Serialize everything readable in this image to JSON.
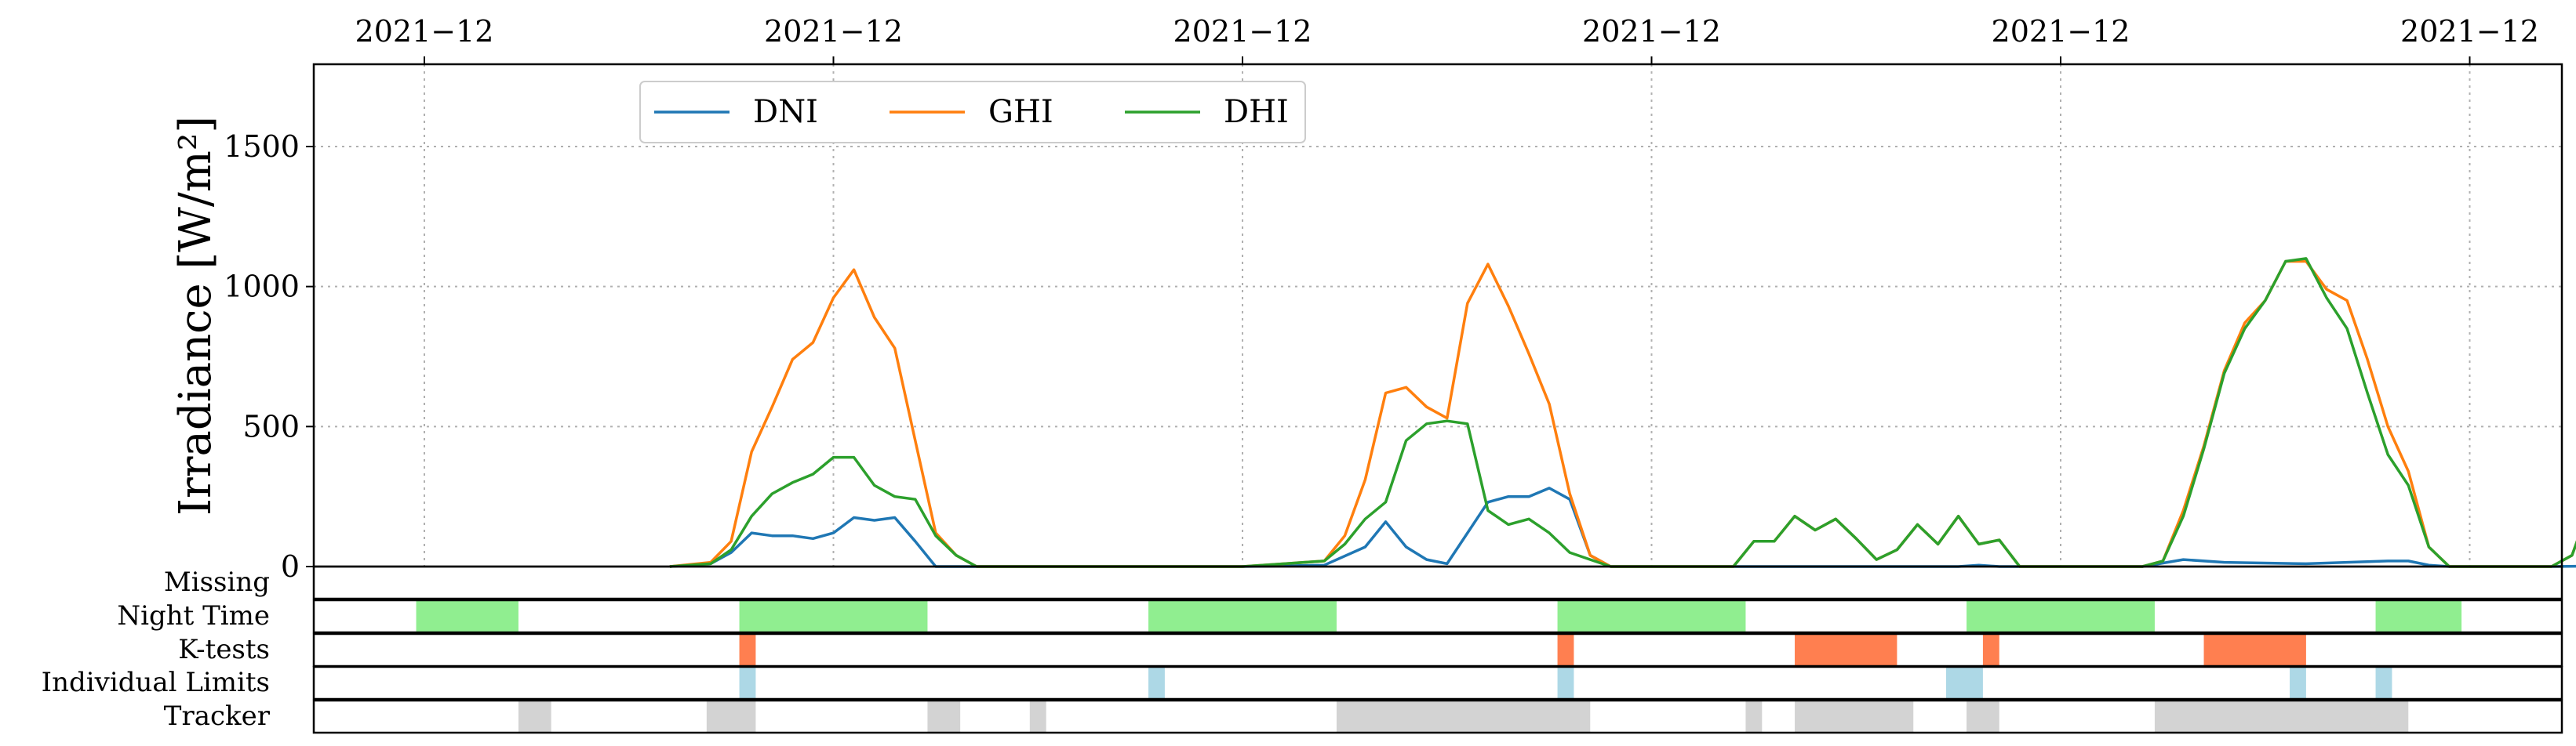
{
  "chart_data": {
    "type": "line",
    "ylabel": "Irradiance [W/m²]",
    "xlabel": "",
    "x_ticks": [
      "2021−12",
      "2021−12",
      "2021−12",
      "2021−12",
      "2021−12",
      "2021−12"
    ],
    "ylim": [
      0,
      1800
    ],
    "y_ticks": [
      0,
      500,
      1000,
      1500
    ],
    "grid": true,
    "legend": {
      "placement": "top-left",
      "columns": 3
    },
    "series": [
      {
        "name": "DNI",
        "color": "#1f77b4",
        "points": [
          [
            0.6,
            0
          ],
          [
            0.7,
            10
          ],
          [
            0.75,
            50
          ],
          [
            0.8,
            120
          ],
          [
            0.85,
            110
          ],
          [
            0.9,
            110
          ],
          [
            0.95,
            100
          ],
          [
            1.0,
            120
          ],
          [
            1.05,
            175
          ],
          [
            1.1,
            165
          ],
          [
            1.15,
            175
          ],
          [
            1.2,
            90
          ],
          [
            1.25,
            0
          ],
          [
            1.3,
            0
          ],
          [
            1.4,
            0
          ],
          [
            2.0,
            0
          ],
          [
            2.2,
            5
          ],
          [
            2.3,
            70
          ],
          [
            2.35,
            160
          ],
          [
            2.4,
            70
          ],
          [
            2.45,
            25
          ],
          [
            2.5,
            10
          ],
          [
            2.6,
            230
          ],
          [
            2.65,
            250
          ],
          [
            2.7,
            250
          ],
          [
            2.75,
            280
          ],
          [
            2.8,
            240
          ],
          [
            2.85,
            40
          ],
          [
            2.9,
            0
          ],
          [
            3.5,
            0
          ],
          [
            3.6,
            0
          ],
          [
            3.75,
            0
          ],
          [
            3.8,
            5
          ],
          [
            3.85,
            0
          ],
          [
            4.2,
            0
          ],
          [
            4.3,
            25
          ],
          [
            4.4,
            15
          ],
          [
            4.6,
            10
          ],
          [
            4.8,
            20
          ],
          [
            4.85,
            20
          ],
          [
            4.9,
            5
          ],
          [
            4.95,
            0
          ],
          [
            5.2,
            0
          ],
          [
            5.5,
            5
          ],
          [
            5.65,
            15
          ],
          [
            5.75,
            0
          ],
          [
            5.95,
            0
          ]
        ]
      },
      {
        "name": "GHI",
        "color": "#ff7f0e",
        "points": [
          [
            0.6,
            0
          ],
          [
            0.7,
            15
          ],
          [
            0.75,
            90
          ],
          [
            0.8,
            410
          ],
          [
            0.85,
            570
          ],
          [
            0.9,
            740
          ],
          [
            0.95,
            800
          ],
          [
            1.0,
            960
          ],
          [
            1.05,
            1060
          ],
          [
            1.1,
            890
          ],
          [
            1.15,
            780
          ],
          [
            1.2,
            450
          ],
          [
            1.25,
            120
          ],
          [
            1.3,
            40
          ],
          [
            1.35,
            0
          ],
          [
            2.0,
            0
          ],
          [
            2.2,
            20
          ],
          [
            2.25,
            110
          ],
          [
            2.3,
            310
          ],
          [
            2.35,
            620
          ],
          [
            2.4,
            640
          ],
          [
            2.45,
            570
          ],
          [
            2.5,
            530
          ],
          [
            2.55,
            940
          ],
          [
            2.6,
            1080
          ],
          [
            2.65,
            930
          ],
          [
            2.7,
            760
          ],
          [
            2.75,
            580
          ],
          [
            2.8,
            260
          ],
          [
            2.85,
            40
          ],
          [
            2.9,
            0
          ],
          [
            3.2,
            0
          ],
          [
            3.25,
            90
          ],
          [
            3.3,
            90
          ],
          [
            3.35,
            180
          ],
          [
            3.4,
            130
          ],
          [
            3.45,
            170
          ],
          [
            3.5,
            100
          ],
          [
            3.55,
            25
          ],
          [
            3.6,
            60
          ],
          [
            3.65,
            150
          ],
          [
            3.7,
            80
          ],
          [
            3.75,
            180
          ],
          [
            3.8,
            80
          ],
          [
            3.85,
            95
          ],
          [
            3.9,
            0
          ],
          [
            4.2,
            0
          ],
          [
            4.25,
            20
          ],
          [
            4.3,
            200
          ],
          [
            4.35,
            430
          ],
          [
            4.4,
            700
          ],
          [
            4.45,
            870
          ],
          [
            4.5,
            950
          ],
          [
            4.55,
            1090
          ],
          [
            4.6,
            1090
          ],
          [
            4.65,
            990
          ],
          [
            4.7,
            950
          ],
          [
            4.75,
            740
          ],
          [
            4.8,
            500
          ],
          [
            4.85,
            340
          ],
          [
            4.9,
            70
          ],
          [
            4.95,
            0
          ],
          [
            5.2,
            0
          ],
          [
            5.25,
            40
          ],
          [
            5.3,
            240
          ],
          [
            5.35,
            480
          ],
          [
            5.4,
            710
          ],
          [
            5.45,
            900
          ],
          [
            5.5,
            1050
          ],
          [
            5.55,
            1100
          ],
          [
            5.6,
            1090
          ],
          [
            5.65,
            1100
          ],
          [
            5.7,
            960
          ],
          [
            5.75,
            510
          ],
          [
            5.8,
            140
          ],
          [
            5.85,
            50
          ],
          [
            5.9,
            15
          ],
          [
            5.95,
            0
          ]
        ]
      },
      {
        "name": "DHI",
        "color": "#2ca02c",
        "points": [
          [
            0.6,
            0
          ],
          [
            0.7,
            10
          ],
          [
            0.75,
            60
          ],
          [
            0.8,
            180
          ],
          [
            0.85,
            260
          ],
          [
            0.9,
            300
          ],
          [
            0.95,
            330
          ],
          [
            1.0,
            390
          ],
          [
            1.05,
            390
          ],
          [
            1.1,
            290
          ],
          [
            1.15,
            250
          ],
          [
            1.2,
            240
          ],
          [
            1.25,
            110
          ],
          [
            1.3,
            40
          ],
          [
            1.35,
            0
          ],
          [
            2.0,
            0
          ],
          [
            2.2,
            20
          ],
          [
            2.25,
            80
          ],
          [
            2.3,
            170
          ],
          [
            2.35,
            230
          ],
          [
            2.4,
            450
          ],
          [
            2.45,
            510
          ],
          [
            2.5,
            520
          ],
          [
            2.55,
            510
          ],
          [
            2.6,
            200
          ],
          [
            2.65,
            150
          ],
          [
            2.7,
            170
          ],
          [
            2.75,
            120
          ],
          [
            2.8,
            50
          ],
          [
            2.85,
            25
          ],
          [
            2.9,
            0
          ],
          [
            3.2,
            0
          ],
          [
            3.25,
            90
          ],
          [
            3.3,
            90
          ],
          [
            3.35,
            180
          ],
          [
            3.4,
            130
          ],
          [
            3.45,
            170
          ],
          [
            3.5,
            100
          ],
          [
            3.55,
            25
          ],
          [
            3.6,
            60
          ],
          [
            3.65,
            150
          ],
          [
            3.7,
            80
          ],
          [
            3.75,
            180
          ],
          [
            3.8,
            80
          ],
          [
            3.85,
            95
          ],
          [
            3.9,
            0
          ],
          [
            4.2,
            0
          ],
          [
            4.25,
            20
          ],
          [
            4.3,
            180
          ],
          [
            4.35,
            420
          ],
          [
            4.4,
            690
          ],
          [
            4.45,
            850
          ],
          [
            4.5,
            950
          ],
          [
            4.55,
            1090
          ],
          [
            4.6,
            1100
          ],
          [
            4.65,
            960
          ],
          [
            4.7,
            850
          ],
          [
            4.75,
            620
          ],
          [
            4.8,
            400
          ],
          [
            4.85,
            290
          ],
          [
            4.9,
            70
          ],
          [
            4.95,
            0
          ],
          [
            5.2,
            0
          ],
          [
            5.25,
            40
          ],
          [
            5.3,
            240
          ],
          [
            5.35,
            480
          ],
          [
            5.4,
            710
          ],
          [
            5.45,
            900
          ],
          [
            5.5,
            1050
          ],
          [
            5.55,
            1100
          ],
          [
            5.6,
            1090
          ],
          [
            5.65,
            1060
          ],
          [
            5.7,
            940
          ],
          [
            5.75,
            470
          ],
          [
            5.8,
            140
          ],
          [
            5.85,
            50
          ],
          [
            5.9,
            15
          ],
          [
            5.95,
            0
          ]
        ]
      }
    ],
    "flag_rows": [
      {
        "label": "Missing",
        "color": "#90ee90",
        "intervals": []
      },
      {
        "label": "Night Time",
        "color": "#90ee90",
        "intervals": [
          [
            -0.02,
            0.23
          ],
          [
            0.77,
            1.23
          ],
          [
            1.77,
            2.23
          ],
          [
            2.77,
            3.23
          ],
          [
            3.77,
            4.23
          ],
          [
            4.77,
            4.98
          ]
        ]
      },
      {
        "label": "K-tests",
        "color": "#ff7f50",
        "intervals": [
          [
            0.77,
            0.81
          ],
          [
            2.77,
            2.81
          ],
          [
            3.35,
            3.6
          ],
          [
            3.81,
            3.85
          ],
          [
            4.35,
            4.6
          ]
        ]
      },
      {
        "label": "Individual Limits",
        "color": "#add8e6",
        "intervals": [
          [
            0.77,
            0.81
          ],
          [
            1.77,
            1.81
          ],
          [
            2.77,
            2.81
          ],
          [
            3.72,
            3.81
          ],
          [
            4.56,
            4.6
          ],
          [
            4.77,
            4.81
          ]
        ]
      },
      {
        "label": "Tracker",
        "color": "#d3d3d3",
        "intervals": [
          [
            0.23,
            0.31
          ],
          [
            0.69,
            0.81
          ],
          [
            1.23,
            1.31
          ],
          [
            1.48,
            1.52
          ],
          [
            2.23,
            2.85
          ],
          [
            3.23,
            3.27
          ],
          [
            3.35,
            3.64
          ],
          [
            3.77,
            3.85
          ],
          [
            4.23,
            4.85
          ]
        ]
      }
    ]
  }
}
